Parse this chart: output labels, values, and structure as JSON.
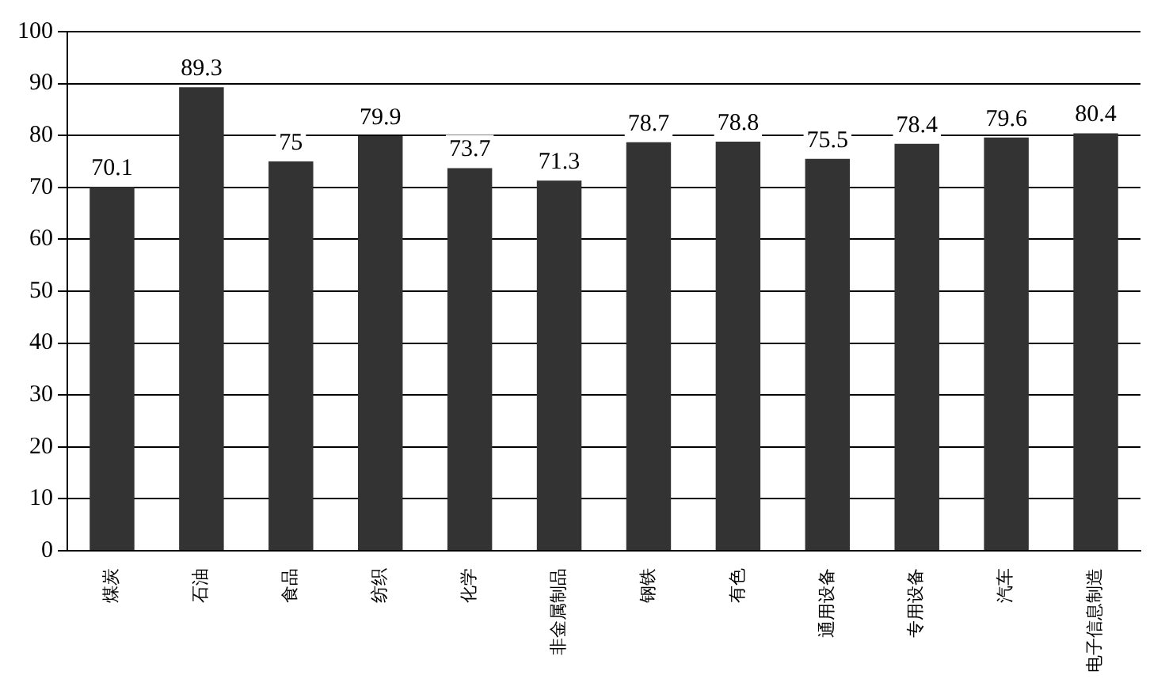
{
  "chart_data": {
    "type": "bar",
    "categories": [
      "煤炭",
      "石油",
      "食品",
      "纺织",
      "化学",
      "非金属制品",
      "钢铁",
      "有色",
      "通用设备",
      "专用设备",
      "汽车",
      "电子信息制造"
    ],
    "values": [
      70.1,
      89.3,
      75,
      79.9,
      73.7,
      71.3,
      78.7,
      78.8,
      75.5,
      78.4,
      79.6,
      80.4
    ],
    "color": "#333333",
    "ylim": [
      0,
      100
    ],
    "yticks": [
      0,
      10,
      20,
      30,
      40,
      50,
      60,
      70,
      80,
      90,
      100
    ],
    "grid": "y",
    "data_labels": true
  }
}
